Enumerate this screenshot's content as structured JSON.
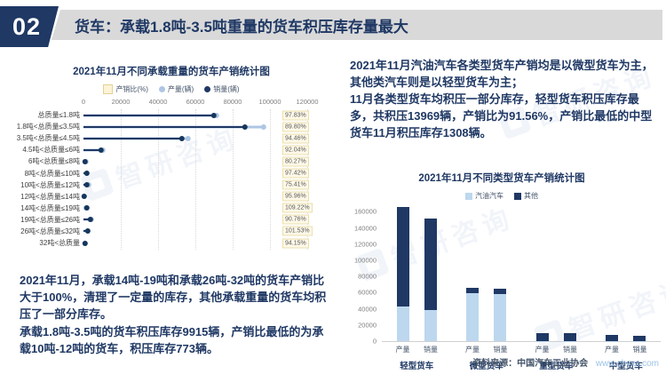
{
  "header": {
    "number": "02",
    "title": "货车：承载1.8吨-3.5吨重量的货车积压库存量最大"
  },
  "watermark_text": "智研咨询",
  "text_blocks": {
    "right": [
      "2021年11月汽油汽车各类型货车产销均是以微型货车为主，其他类汽车则是以轻型货车为主；",
      "11月各类型货车均积压一部分库存，轻型货车积压库存最多，共积压13969辆，产销比为91.56%，产销比最低的中型货车11月积压库存1308辆。"
    ],
    "bottom_left": [
      "2021年11月，承载14吨-19吨和承载26吨-32吨的货车产销比大于100%，清理了一定量的库存，其他承载重量的货车均积压了一部分库存。",
      "承载1.8吨-3.5吨的货车积压库存9915辆，产销比最低的为承载10吨-12吨的货车，积压库存773辆。"
    ]
  },
  "source": {
    "label": "资料来源：中国汽车工业协会",
    "url": "www.chyxx.com"
  },
  "colors": {
    "navy": "#1f3864",
    "light_blue": "#bdd7ee",
    "dot_light": "#aec6e4",
    "cream": "#fdf3d7",
    "header_gray": "#d9d9d9",
    "url_blue": "#9dc3e6"
  },
  "chart_data": [
    {
      "type": "bar",
      "variant": "horizontal-lollipop",
      "title": "2021年11月不同承载重量的货车产销统计图",
      "legend": [
        "产销比(%)",
        "产量(辆)",
        "销量(辆)"
      ],
      "legend_position": "top",
      "axis_position": "top",
      "grid": "vertical-dotted",
      "xlim": [
        0,
        120000
      ],
      "xticks": [
        0,
        20000,
        40000,
        60000,
        80000,
        100000,
        120000
      ],
      "categories": [
        "总质量≤1.8吨",
        "1.8吨<总质量≤3.5吨",
        "3.5吨<总质量≤4.5吨",
        "4.5吨<总质量≤6吨",
        "6吨<总质量≤8吨",
        "8吨<总质量≤10吨",
        "10吨<总质量≤12吨",
        "12吨<总质量≤14吨",
        "14吨<总质量≤19吨",
        "19吨<总质量≤26吨",
        "26吨<总质量≤32吨",
        "32吨<总质量"
      ],
      "series": [
        {
          "name": "产量(辆)",
          "values": [
            72000,
            97205,
            56600,
            11000,
            2000,
            2500,
            3143,
            1000,
            2100,
            4600,
            3000,
            1300
          ]
        },
        {
          "name": "销量(辆)",
          "values": [
            70437,
            87290,
            53460,
            10124,
            1605,
            2436,
            2370,
            960,
            2294,
            4175,
            3046,
            1224
          ]
        },
        {
          "name": "产销比(%)",
          "values": [
            "97.83%",
            "89.80%",
            "94.46%",
            "92.04%",
            "80.27%",
            "97.42%",
            "75.41%",
            "95.96%",
            "109.22%",
            "90.76%",
            "101.53%",
            "94.15%"
          ]
        }
      ]
    },
    {
      "type": "bar",
      "variant": "stacked",
      "title": "2021年11月不同类型货车产销统计图",
      "legend": [
        "汽油汽车",
        "其他"
      ],
      "legend_position": "top",
      "groups": [
        "轻型货车",
        "微型货车",
        "重型货车",
        "中型货车"
      ],
      "bar_labels": [
        "产量",
        "销量"
      ],
      "ylim": [
        0,
        167000
      ],
      "yticks": [
        0,
        20000,
        40000,
        60000,
        80000,
        100000,
        120000,
        140000,
        160000
      ],
      "series": [
        {
          "name": "汽油汽车",
          "color": "#bdd7ee",
          "values": [
            [
              43200,
              39000
            ],
            [
              59500,
              58700
            ],
            [
              300,
              300
            ],
            [
              200,
              200
            ]
          ]
        },
        {
          "name": "其他",
          "color": "#1f3864",
          "values": [
            [
              122269,
              112500
            ],
            [
              6400,
              6200
            ],
            [
              9400,
              9300
            ],
            [
              7400,
              6100
            ]
          ]
        }
      ],
      "totals": [
        [
          165469,
          151500
        ],
        [
          65900,
          64900
        ],
        [
          9700,
          9600
        ],
        [
          7600,
          6300
        ]
      ]
    }
  ]
}
